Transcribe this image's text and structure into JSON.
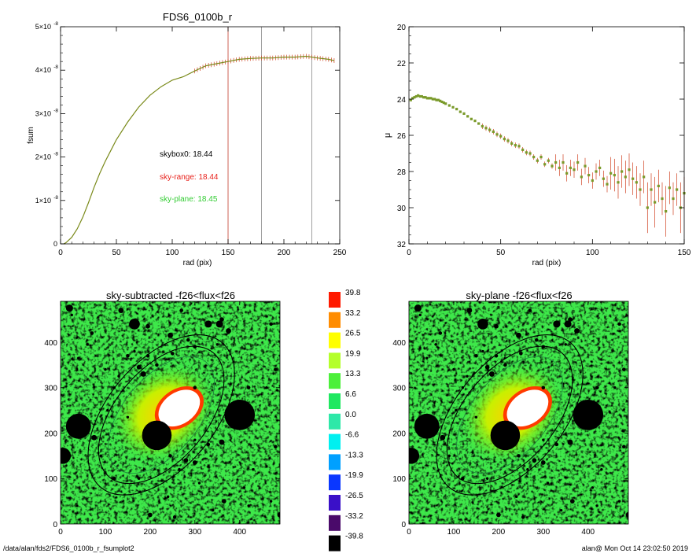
{
  "chart_data": [
    {
      "type": "line",
      "title": "FDS6_0100b_r",
      "xlabel": "rad (pix)",
      "ylabel": "fsum",
      "xlim": [
        0,
        250
      ],
      "ylim": [
        0,
        5e-08
      ],
      "x_ticks": [
        "0",
        "50",
        "100",
        "150",
        "200",
        "250"
      ],
      "y_ticks": [
        {
          "mant": "0",
          "exp": ""
        },
        {
          "mant": "1×10",
          "exp": "-8"
        },
        {
          "mant": "2×10",
          "exp": "-8"
        },
        {
          "mant": "3×10",
          "exp": "-8"
        },
        {
          "mant": "4×10",
          "exp": "-8"
        },
        {
          "mant": "5×10",
          "exp": "-8"
        }
      ],
      "x": [
        3,
        5,
        10,
        15,
        20,
        25,
        30,
        35,
        40,
        45,
        50,
        60,
        70,
        80,
        90,
        100,
        110,
        120,
        130,
        140,
        150,
        160,
        170,
        180,
        190,
        200,
        210,
        220,
        230,
        240,
        245
      ],
      "values": [
        0.0,
        0.03,
        0.15,
        0.35,
        0.62,
        0.95,
        1.3,
        1.62,
        1.9,
        2.15,
        2.4,
        2.8,
        3.15,
        3.42,
        3.62,
        3.77,
        3.85,
        3.98,
        4.1,
        4.15,
        4.2,
        4.25,
        4.27,
        4.28,
        4.28,
        4.3,
        4.3,
        4.32,
        4.28,
        4.25,
        4.22
      ],
      "vlines": [
        {
          "x": 150,
          "color": "#c0392b"
        },
        {
          "x": 180,
          "color": "#888888"
        },
        {
          "x": 225,
          "color": "#888888"
        }
      ],
      "annotations": [
        {
          "text": "skybox0: 18.44",
          "color": "#000000"
        },
        {
          "text": "sky-range: 18.44",
          "color": "#e8201a"
        },
        {
          "text": "sky-plane: 18.45",
          "color": "#33cc33"
        }
      ],
      "colors": {
        "line": "#7a8a1a",
        "errorbar": "#d04020"
      }
    },
    {
      "type": "scatter",
      "title": "",
      "xlabel": "rad (pix)",
      "ylabel": "μ",
      "xlim": [
        0,
        150
      ],
      "ylim": [
        32,
        20
      ],
      "x_ticks": [
        "0",
        "50",
        "100",
        "150"
      ],
      "y_ticks": [
        "20",
        "22",
        "24",
        "26",
        "28",
        "30",
        "32"
      ],
      "x": [
        1,
        2,
        3,
        4,
        5,
        6,
        7,
        8,
        9,
        10,
        11,
        12,
        13,
        14,
        15,
        16,
        17,
        18,
        19,
        20,
        22,
        24,
        26,
        28,
        30,
        32,
        34,
        36,
        38,
        40,
        42,
        44,
        46,
        48,
        50,
        52,
        54,
        56,
        58,
        60,
        62,
        64,
        66,
        68,
        70,
        72,
        74,
        76,
        78,
        80,
        82,
        84,
        86,
        88,
        90,
        92,
        94,
        96,
        98,
        100,
        102,
        104,
        106,
        108,
        110,
        112,
        114,
        116,
        118,
        120,
        122,
        124,
        126,
        128,
        130,
        132,
        134,
        136,
        138,
        140,
        142,
        144,
        146,
        148,
        150
      ],
      "values": [
        24.05,
        23.95,
        23.9,
        23.85,
        23.8,
        23.85,
        23.85,
        23.9,
        23.9,
        23.95,
        23.95,
        23.95,
        24.0,
        24.0,
        24.05,
        24.05,
        24.1,
        24.15,
        24.2,
        24.25,
        24.35,
        24.45,
        24.55,
        24.7,
        24.8,
        24.95,
        25.1,
        25.2,
        25.35,
        25.5,
        25.6,
        25.7,
        25.8,
        25.95,
        26.05,
        26.2,
        26.3,
        26.45,
        26.55,
        26.6,
        26.8,
        26.95,
        27.0,
        27.2,
        27.4,
        27.2,
        27.6,
        27.4,
        27.7,
        27.5,
        27.8,
        27.5,
        28.1,
        27.8,
        27.9,
        27.5,
        28.3,
        27.7,
        28.2,
        28.5,
        28.0,
        27.8,
        28.4,
        28.7,
        28.1,
        28.2,
        28.6,
        28.0,
        28.3,
        27.9,
        28.4,
        28.6,
        29.0,
        28.3,
        30.0,
        29.0,
        29.7,
        28.8,
        29.5,
        30.2,
        28.9,
        29.5,
        29.0,
        30.0,
        29.2
      ],
      "colors": {
        "marker": "#7a9a2a",
        "errorbar": "#d04020"
      }
    },
    {
      "type": "heatmap",
      "title": "sky-subtracted -f26<flux<f26",
      "xlim": [
        0,
        490
      ],
      "ylim": [
        0,
        490
      ],
      "x_ticks": [
        "0",
        "100",
        "200",
        "300",
        "400"
      ],
      "y_ticks": [
        "0",
        "100",
        "200",
        "300",
        "400"
      ]
    },
    {
      "type": "heatmap",
      "title": "sky-plane -f26<flux<f26",
      "xlim": [
        0,
        490
      ],
      "ylim": [
        0,
        490
      ],
      "x_ticks": [
        "0",
        "100",
        "200",
        "300",
        "400"
      ],
      "y_ticks": [
        "0",
        "100",
        "200",
        "300",
        "400"
      ]
    }
  ],
  "colorbar": {
    "labels": [
      "39.8",
      "33.2",
      "26.5",
      "19.9",
      "13.3",
      "6.6",
      "0.0",
      "-6.6",
      "-13.3",
      "-19.9",
      "-26.5",
      "-33.2",
      "-39.8"
    ],
    "colors": [
      "#ff1a00",
      "#ff8c00",
      "#ffff00",
      "#b4ff2a",
      "#4cf03a",
      "#1fe860",
      "#2ee8a8",
      "#00f0f0",
      "#00a0ff",
      "#0a37ff",
      "#3a10c8",
      "#4a0a6a",
      "#000000"
    ]
  },
  "footer": {
    "left": "/data/alan/fds2/FDS6_0100b_r_fsumplot2",
    "right": "alan@  Mon Oct 14 23:02:50 2019"
  }
}
